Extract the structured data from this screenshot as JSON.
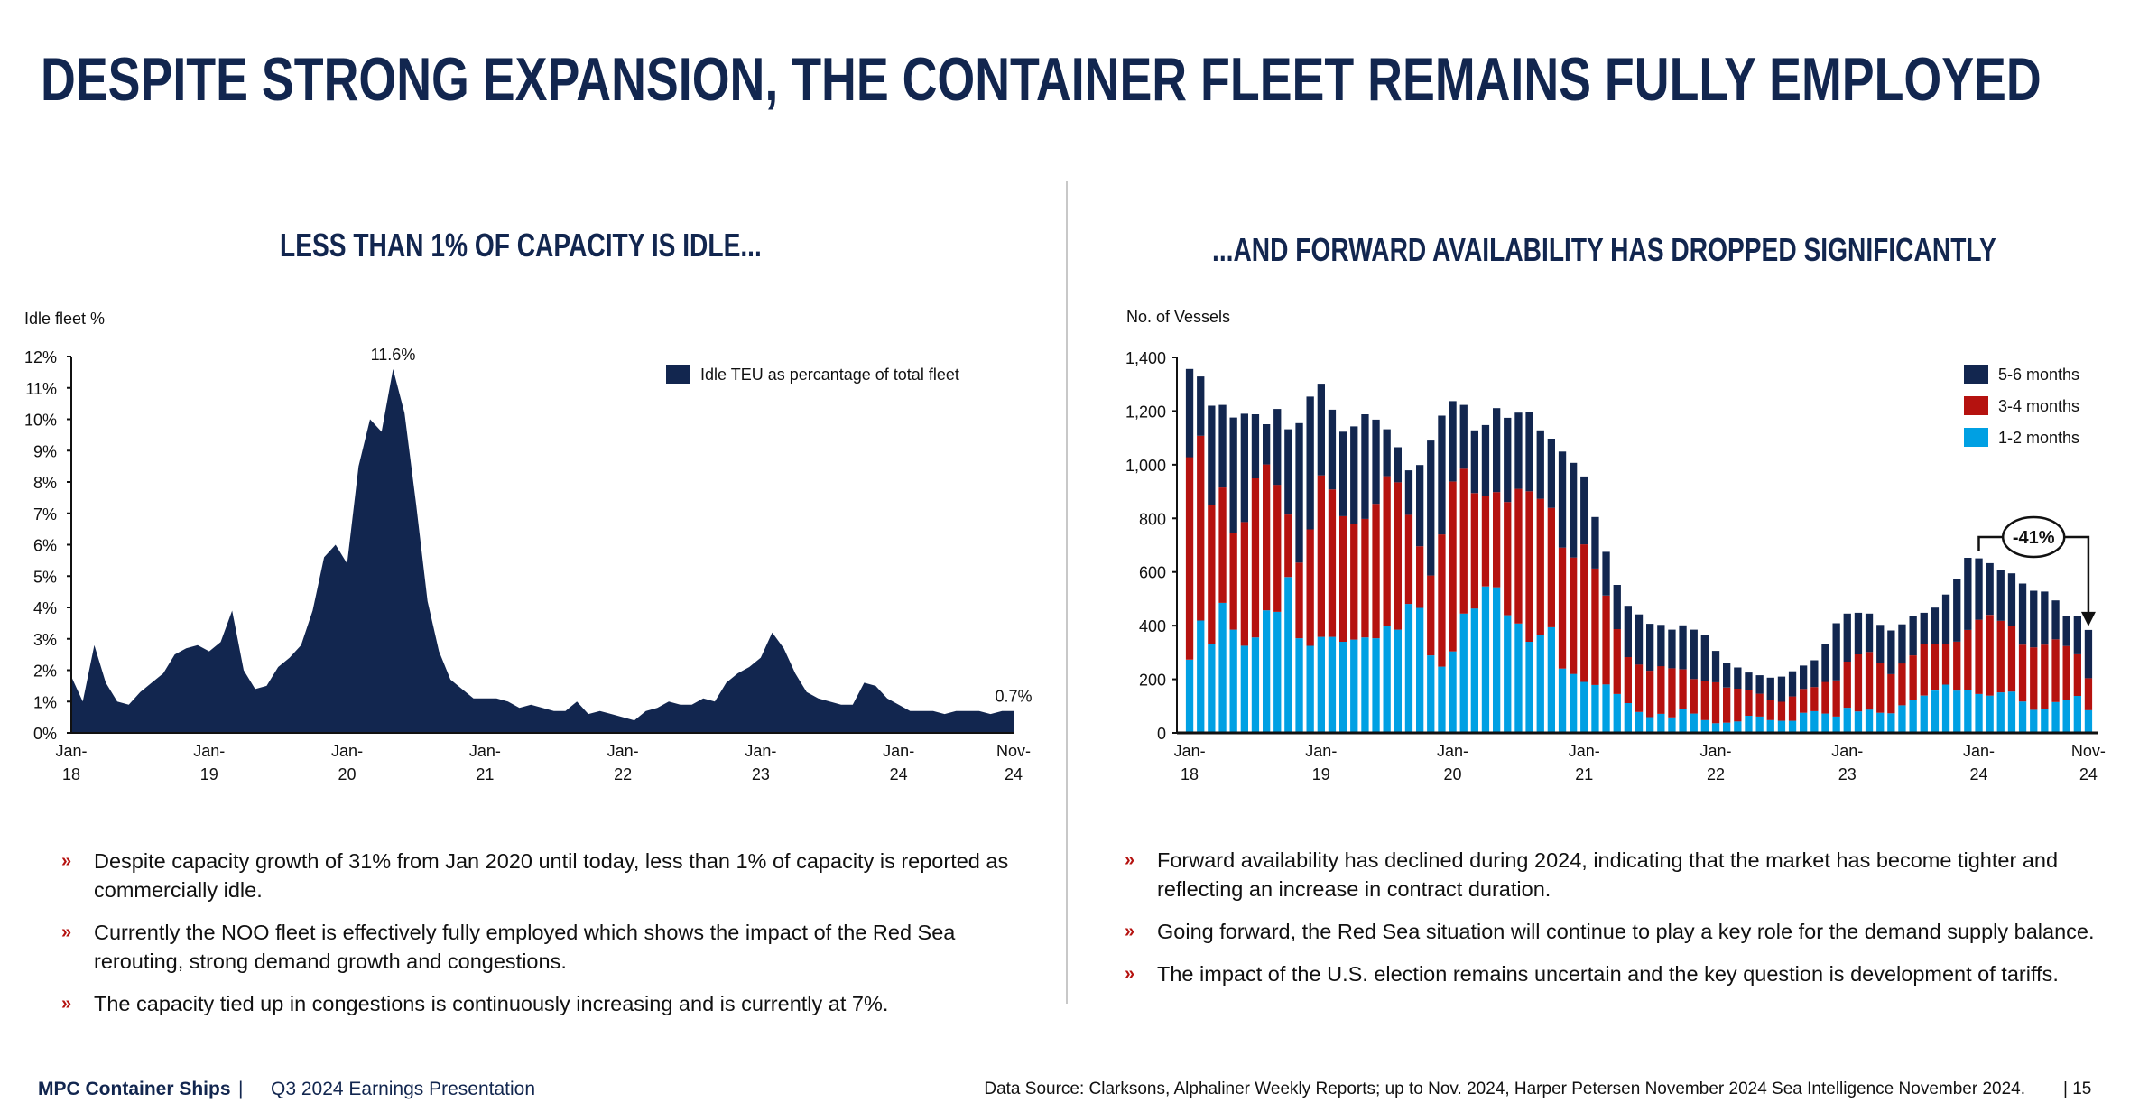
{
  "title": "DESPITE STRONG EXPANSION, THE CONTAINER FLEET REMAINS FULLY EMPLOYED",
  "left_panel": {
    "heading": "LESS THAN 1% OF CAPACITY IS IDLE...",
    "bullets": [
      "Despite capacity growth of 31% from Jan 2020 until today, less than 1% of capacity is reported as commercially idle.",
      "Currently the NOO fleet is effectively fully employed which shows the impact of the Red Sea rerouting, strong demand growth and congestions.",
      "The capacity tied up in congestions is continuously increasing and is currently at 7%."
    ]
  },
  "right_panel": {
    "heading": "...AND FORWARD AVAILABILITY HAS DROPPED SIGNIFICANTLY",
    "bullets": [
      "Forward availability has declined during 2024, indicating that the market has become tighter and reflecting an increase in contract duration.",
      "Going forward, the Red Sea situation will continue to play a key role for the demand supply balance.",
      "The impact of the U.S. election remains uncertain and the key question is development of tariffs."
    ]
  },
  "bullet_marker": "»",
  "footer": {
    "brand": "MPC Container Ships",
    "separator": "|",
    "presentation": "Q3 2024 Earnings Presentation",
    "source": "Data Source: Clarksons, Alphaliner Weekly Reports; up to Nov. 2024, Harper Petersen November 2024 Sea Intelligence November 2024.",
    "page": "| 15"
  },
  "colors": {
    "navy": "#12264f",
    "red": "#b5120f",
    "light_blue": "#00a0e3",
    "divider": "#c8c8c8"
  },
  "chart_data": [
    {
      "type": "area",
      "ylabel": "Idle fleet %",
      "ylim": [
        0,
        12
      ],
      "y_ticks": [
        "0%",
        "1%",
        "2%",
        "3%",
        "4%",
        "5%",
        "6%",
        "7%",
        "8%",
        "9%",
        "10%",
        "11%",
        "12%"
      ],
      "x_ticks": [
        {
          "index": 0,
          "line1": "Jan-",
          "line2": "18"
        },
        {
          "index": 12,
          "line1": "Jan-",
          "line2": "19"
        },
        {
          "index": 24,
          "line1": "Jan-",
          "line2": "20"
        },
        {
          "index": 36,
          "line1": "Jan-",
          "line2": "21"
        },
        {
          "index": 48,
          "line1": "Jan-",
          "line2": "22"
        },
        {
          "index": 60,
          "line1": "Jan-",
          "line2": "23"
        },
        {
          "index": 72,
          "line1": "Jan-",
          "line2": "24"
        },
        {
          "index": 82,
          "line1": "Nov-",
          "line2": "24"
        }
      ],
      "grid": false,
      "legend": {
        "position": "top-right",
        "entries": [
          "Idle TEU as percantage of total fleet"
        ]
      },
      "series": [
        {
          "name": "Idle TEU as percantage of total fleet",
          "color": "#12264f",
          "values": [
            1.8,
            1.0,
            2.8,
            1.6,
            1.0,
            0.9,
            1.3,
            1.6,
            1.9,
            2.5,
            2.7,
            2.8,
            2.6,
            2.9,
            3.9,
            2.0,
            1.4,
            1.5,
            2.1,
            2.4,
            2.8,
            3.9,
            5.6,
            6.0,
            5.4,
            8.5,
            10.0,
            9.6,
            11.6,
            10.2,
            7.3,
            4.2,
            2.6,
            1.7,
            1.4,
            1.1,
            1.1,
            1.1,
            1.0,
            0.8,
            0.9,
            0.8,
            0.7,
            0.7,
            1.0,
            0.6,
            0.7,
            0.6,
            0.5,
            0.4,
            0.7,
            0.8,
            1.0,
            0.9,
            0.9,
            1.1,
            1.0,
            1.6,
            1.9,
            2.1,
            2.4,
            3.2,
            2.7,
            1.9,
            1.3,
            1.1,
            1.0,
            0.9,
            0.9,
            1.6,
            1.5,
            1.1,
            0.9,
            0.7,
            0.7,
            0.7,
            0.6,
            0.7,
            0.7,
            0.7,
            0.6,
            0.7,
            0.7
          ]
        }
      ],
      "annotations": [
        {
          "index": 28,
          "label": "11.6%"
        },
        {
          "index": 82,
          "label": "0.7%"
        }
      ]
    },
    {
      "type": "bar",
      "stacked": true,
      "ylabel": "No. of Vessels",
      "ylim": [
        0,
        1400
      ],
      "y_ticks": [
        "0",
        "200",
        "400",
        "600",
        "800",
        "1,000",
        "1,200",
        "1,400"
      ],
      "x_ticks": [
        {
          "index": 0,
          "line1": "Jan-",
          "line2": "18"
        },
        {
          "index": 12,
          "line1": "Jan-",
          "line2": "19"
        },
        {
          "index": 24,
          "line1": "Jan-",
          "line2": "20"
        },
        {
          "index": 36,
          "line1": "Jan-",
          "line2": "21"
        },
        {
          "index": 48,
          "line1": "Jan-",
          "line2": "22"
        },
        {
          "index": 60,
          "line1": "Jan-",
          "line2": "23"
        },
        {
          "index": 72,
          "line1": "Jan-",
          "line2": "24"
        },
        {
          "index": 82,
          "line1": "Nov-",
          "line2": "24"
        }
      ],
      "grid": false,
      "legend": {
        "position": "top-right",
        "entries": [
          "5-6 months",
          "3-4 months",
          "1-2 months"
        ]
      },
      "series": [
        {
          "name": "1-2 months",
          "color": "#00a0e3",
          "values": [
            273,
            419,
            331,
            485,
            385,
            325,
            356,
            457,
            451,
            581,
            353,
            325,
            358,
            358,
            340,
            348,
            356,
            353,
            399,
            385,
            481,
            466,
            289,
            247,
            304,
            445,
            464,
            546,
            543,
            439,
            408,
            340,
            364,
            394,
            240,
            220,
            190,
            179,
            181,
            145,
            111,
            78,
            59,
            71,
            58,
            88,
            72,
            48,
            36,
            38,
            43,
            64,
            61,
            48,
            45,
            45,
            75,
            81,
            72,
            61,
            94,
            80,
            87,
            75,
            73,
            103,
            121,
            139,
            158,
            180,
            158,
            159,
            145,
            139,
            151,
            154,
            117,
            86,
            88,
            115,
            121,
            138,
            85
          ]
        },
        {
          "name": "3-4 months",
          "color": "#b5120f",
          "values": [
            755,
            689,
            519,
            430,
            359,
            461,
            593,
            544,
            474,
            233,
            282,
            434,
            602,
            550,
            468,
            430,
            442,
            501,
            558,
            549,
            332,
            230,
            298,
            493,
            633,
            540,
            430,
            338,
            355,
            422,
            502,
            561,
            509,
            445,
            451,
            434,
            513,
            434,
            331,
            242,
            172,
            177,
            173,
            178,
            183,
            149,
            129,
            146,
            153,
            131,
            122,
            97,
            85,
            76,
            71,
            91,
            89,
            90,
            118,
            135,
            172,
            213,
            215,
            185,
            146,
            156,
            168,
            193,
            173,
            151,
            182,
            225,
            277,
            301,
            267,
            244,
            212,
            233,
            241,
            234,
            203,
            155,
            119
          ]
        },
        {
          "name": "5-6 months",
          "color": "#12264f",
          "values": [
            329,
            221,
            370,
            308,
            432,
            404,
            239,
            150,
            283,
            318,
            520,
            495,
            342,
            297,
            315,
            365,
            390,
            314,
            175,
            131,
            166,
            303,
            503,
            443,
            300,
            238,
            234,
            264,
            313,
            314,
            284,
            294,
            255,
            258,
            358,
            353,
            253,
            192,
            163,
            165,
            191,
            187,
            175,
            154,
            144,
            164,
            184,
            171,
            117,
            90,
            79,
            64,
            69,
            82,
            94,
            94,
            87,
            100,
            143,
            213,
            179,
            155,
            143,
            143,
            163,
            146,
            146,
            116,
            136,
            185,
            232,
            269,
            229,
            193,
            189,
            197,
            228,
            211,
            198,
            145,
            113,
            141,
            180
          ]
        }
      ],
      "annotations": [
        {
          "from_index": 72,
          "to_index": 82,
          "label": "-41%"
        }
      ]
    }
  ]
}
